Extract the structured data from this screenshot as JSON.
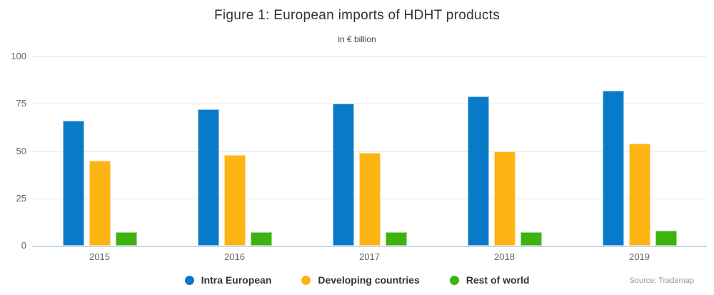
{
  "header": {
    "title": "Figure 1: European imports of HDHT products",
    "subtitle": "in € billion"
  },
  "source_note": "Source: Trademap",
  "style": {
    "gridline_color": "#e6e6e6",
    "baseline_color": "#ccd6eb",
    "axis_label_color": "#666666",
    "legend_text_color": "#333333"
  },
  "chart_data": {
    "type": "bar",
    "title": "Figure 1: European imports of HDHT products",
    "subtitle": "in € billion",
    "xlabel": "",
    "ylabel": "",
    "ylim": [
      0,
      100
    ],
    "yticks": [
      0,
      25,
      50,
      75,
      100
    ],
    "grid": true,
    "legend_position": "bottom-center",
    "categories": [
      "2015",
      "2016",
      "2017",
      "2018",
      "2019"
    ],
    "series": [
      {
        "name": "Intra European",
        "color": "#077bc8",
        "border": "#9fc6e6",
        "values": [
          66,
          72,
          75,
          79,
          82
        ]
      },
      {
        "name": "Developing countries",
        "color": "#fdb513",
        "border": "#fedf9b",
        "values": [
          45,
          48,
          49,
          50,
          54
        ]
      },
      {
        "name": "Rest of world",
        "color": "#3eb30e",
        "border": "#a6da92",
        "values": [
          7,
          7,
          7,
          7,
          8
        ]
      }
    ]
  }
}
